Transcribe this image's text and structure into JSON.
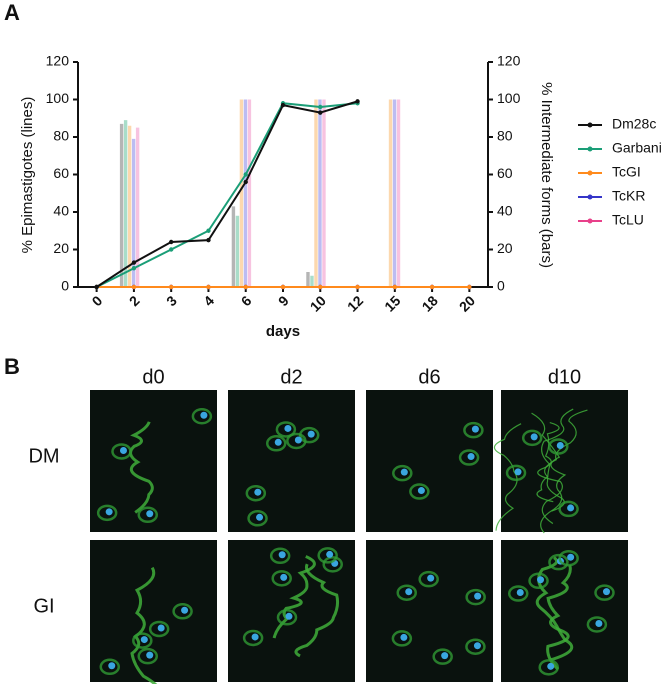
{
  "panel_labels": [
    "A",
    "B"
  ],
  "chart_data": {
    "type": "line_bar",
    "xlabel": "days",
    "ylabel": "% Epimastigotes  (lines)",
    "y2label": "% Intermediate forms  (bars)",
    "categories": [
      "0",
      "2",
      "3",
      "4",
      "6",
      "9",
      "10",
      "12",
      "15",
      "18",
      "20"
    ],
    "ylim": [
      0,
      120
    ],
    "yticks": [
      0,
      20,
      40,
      60,
      80,
      100,
      120
    ],
    "y2lim": [
      0,
      120
    ],
    "y2ticks": [
      0,
      20,
      40,
      60,
      80,
      100,
      120
    ],
    "legend": "right",
    "series": [
      {
        "name": "Dm28c",
        "color": "#111111",
        "bar_color": "#b5b5b5",
        "values": [
          0,
          13,
          24,
          25,
          56,
          97,
          93,
          99,
          null,
          null,
          null
        ],
        "bar_values": [
          0,
          87,
          0,
          0,
          43,
          0,
          8,
          0,
          0,
          0,
          0
        ]
      },
      {
        "name": "Garbani",
        "color": "#1a9e77",
        "bar_color": "#a9ddc9",
        "values": [
          0,
          10,
          20,
          30,
          60,
          98,
          96,
          98,
          null,
          null,
          null
        ],
        "bar_values": [
          0,
          89,
          0,
          0,
          38,
          0,
          6,
          0,
          0,
          0,
          0
        ]
      },
      {
        "name": "TcGI",
        "color": "#ff8a1c",
        "bar_color": "#fcd8ae",
        "values": [
          0,
          0,
          0,
          0,
          0,
          0,
          0,
          0,
          0,
          0,
          0
        ],
        "bar_values": [
          0,
          86,
          0,
          0,
          100,
          0,
          100,
          0,
          100,
          0,
          0
        ]
      },
      {
        "name": "TcKR",
        "color": "#3535c8",
        "bar_color": "#bcbcf2",
        "values": [
          0,
          0,
          0,
          0,
          0,
          0,
          0,
          0,
          0,
          0,
          0
        ],
        "bar_values": [
          0,
          79,
          0,
          0,
          100,
          0,
          100,
          0,
          100,
          0,
          0
        ]
      },
      {
        "name": "TcLU",
        "color": "#e8408a",
        "bar_color": "#f7c3e0",
        "values": [
          0,
          0,
          0,
          0,
          0,
          0,
          0,
          0,
          0,
          0,
          0
        ],
        "bar_values": [
          0,
          85,
          0,
          0,
          100,
          0,
          100,
          0,
          100,
          0,
          0
        ]
      }
    ]
  },
  "micrographs": {
    "columns": [
      "d0",
      "d2",
      "d6",
      "d10"
    ],
    "rows": [
      "DM",
      "GI"
    ]
  }
}
